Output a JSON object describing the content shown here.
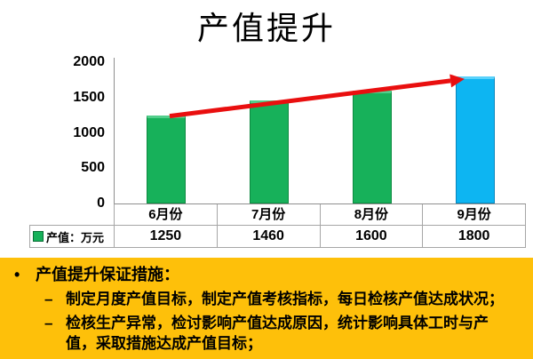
{
  "title": "产值提升",
  "chart_data": {
    "type": "bar",
    "title": "产值提升",
    "categories": [
      "6月份",
      "7月份",
      "8月份",
      "9月份"
    ],
    "series": [
      {
        "name": "产值：万元",
        "values": [
          1250,
          1460,
          1600,
          1800
        ]
      }
    ],
    "yticks": [
      0,
      500,
      1000,
      1500,
      2000
    ],
    "ylim": [
      0,
      2000
    ],
    "xlabel": "",
    "ylabel": "",
    "grid": false,
    "legend_position": "bottom-left-table-header",
    "legend_label": "产值：万元",
    "legend_swatch_color": "#17B15A",
    "bar_colors": [
      "#17B15A",
      "#17B15A",
      "#17B15A",
      "#0DB5F2"
    ],
    "bar_border_colors": [
      "#0E8A41",
      "#0E8A41",
      "#0E8A41",
      "#0A86BC"
    ],
    "bar_top_colors": [
      "#52CE8B",
      "#52CE8B",
      "#52CE8B",
      "#5AD2FB"
    ],
    "trend_arrow": {
      "from_value": 1250,
      "to_value": 1800,
      "color": "#E90F0F"
    },
    "data_table_values": [
      "1250",
      "1460",
      "1600",
      "1800"
    ]
  },
  "measures": {
    "panel_color": "#FEC00A",
    "bullet_char": "•",
    "dash_char": "–",
    "heading": "产值提升保证措施：",
    "items": [
      "制定月度产值目标，制定产值考核指标，每日检核产值达成状况；",
      "检核生产异常，检讨影响产值达成原因，统计影响具体工时与产值，采取措施达成产值目标；"
    ]
  }
}
